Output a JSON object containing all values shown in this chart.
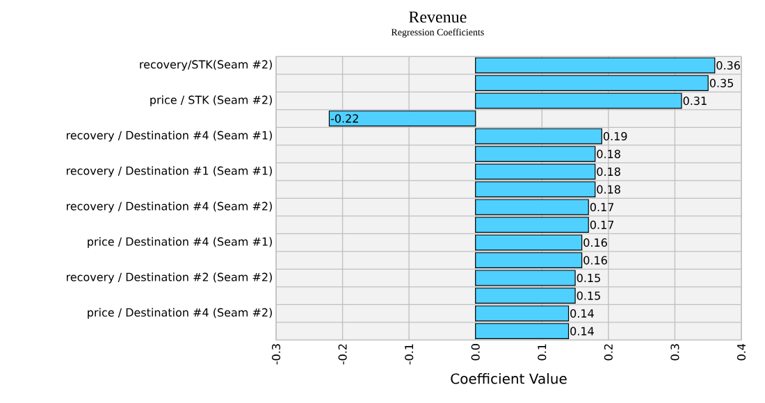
{
  "chart_data": {
    "type": "bar",
    "orientation": "horizontal",
    "title": "Revenue",
    "subtitle": "Regression Coefficients",
    "xlabel": "Coefficient Value",
    "categories": [
      "recovery/STK(Seam #2)",
      null,
      "price / STK (Seam #2)",
      null,
      "recovery / Destination #4 (Seam #1)",
      null,
      "recovery / Destination #1 (Seam #1)",
      null,
      "recovery / Destination #4 (Seam #2)",
      null,
      "price / Destination #4 (Seam #1)",
      null,
      "recovery / Destination #2 (Seam #2)",
      null,
      "price / Destination #4 (Seam #2)",
      null
    ],
    "values": [
      0.36,
      0.35,
      0.31,
      -0.22,
      0.19,
      0.18,
      0.18,
      0.18,
      0.17,
      0.17,
      0.16,
      0.16,
      0.15,
      0.15,
      0.14,
      0.14
    ],
    "color": "#50d0ff",
    "data_labels": true,
    "xlim": [
      -0.3,
      0.4
    ],
    "xticks": [
      {
        "value": -0.3,
        "label": "-0.3"
      },
      {
        "value": -0.2,
        "label": "-0.2"
      },
      {
        "value": -0.1,
        "label": "-0.1"
      },
      {
        "value": 0,
        "label": "0.0"
      },
      {
        "value": 0.1,
        "label": "0.1"
      },
      {
        "value": 0.2,
        "label": "0.2"
      },
      {
        "value": 0.3,
        "label": "0.3"
      },
      {
        "value": 0.4,
        "label": "0.4"
      }
    ],
    "grid": true
  }
}
